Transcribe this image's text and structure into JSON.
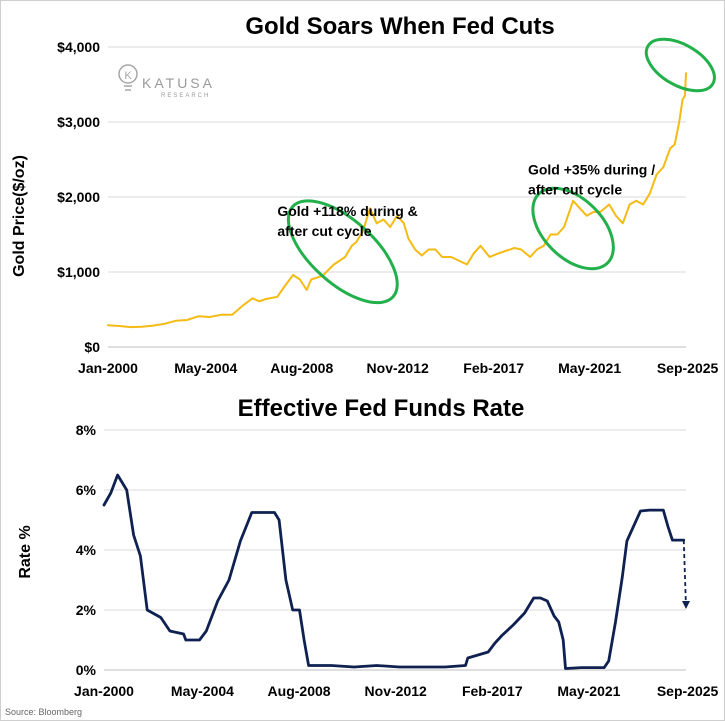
{
  "source": "Source: Bloomberg",
  "logo": {
    "name": "KATUSA",
    "sub": "RESEARCH"
  },
  "colors": {
    "gold": "#f4bb15",
    "rate": "#0f2150",
    "highlight": "#22b04b",
    "grid": "#d9d9d9"
  },
  "chart_data": [
    {
      "type": "line",
      "title": "Gold Soars When Fed Cuts",
      "xlabel": "",
      "ylabel": "Gold Price($/oz)",
      "x_range": [
        2000.0,
        2025.6
      ],
      "ylim": [
        0,
        4000
      ],
      "y_ticks": [
        0,
        1000,
        2000,
        3000,
        4000
      ],
      "y_tick_labels": [
        "$0",
        "$1,000",
        "$2,000",
        "$3,000",
        "$4,000"
      ],
      "x_ticks": [
        2000.0,
        2004.33,
        2008.58,
        2012.83,
        2017.08,
        2021.33,
        2025.67
      ],
      "x_tick_labels": [
        "Jan-2000",
        "May-2004",
        "Aug-2008",
        "Nov-2012",
        "Feb-2017",
        "May-2021",
        "Sep-2025"
      ],
      "grid": true,
      "series": [
        {
          "name": "Gold Price",
          "x": [
            2000.0,
            2000.5,
            2001.0,
            2001.5,
            2002.0,
            2002.5,
            2003.0,
            2003.5,
            2004.0,
            2004.5,
            2005.0,
            2005.5,
            2006.0,
            2006.4,
            2006.7,
            2007.0,
            2007.5,
            2007.8,
            2008.2,
            2008.5,
            2008.8,
            2009.0,
            2009.5,
            2010.0,
            2010.5,
            2010.8,
            2011.0,
            2011.3,
            2011.6,
            2011.9,
            2012.2,
            2012.5,
            2012.8,
            2013.1,
            2013.3,
            2013.6,
            2013.9,
            2014.2,
            2014.5,
            2014.8,
            2015.2,
            2015.9,
            2016.2,
            2016.5,
            2016.9,
            2017.3,
            2017.6,
            2018.0,
            2018.3,
            2018.7,
            2019.0,
            2019.3,
            2019.6,
            2019.9,
            2020.2,
            2020.6,
            2020.9,
            2021.2,
            2021.5,
            2021.8,
            2022.2,
            2022.5,
            2022.8,
            2023.1,
            2023.4,
            2023.7,
            2024.0,
            2024.3,
            2024.6,
            2024.9,
            2025.1,
            2025.3,
            2025.45,
            2025.55,
            2025.6
          ],
          "values": [
            290,
            280,
            265,
            270,
            285,
            310,
            350,
            360,
            410,
            400,
            430,
            430,
            560,
            650,
            610,
            640,
            670,
            800,
            960,
            900,
            760,
            900,
            950,
            1100,
            1200,
            1350,
            1400,
            1550,
            1850,
            1650,
            1700,
            1600,
            1750,
            1650,
            1450,
            1300,
            1220,
            1300,
            1300,
            1200,
            1200,
            1100,
            1250,
            1350,
            1200,
            1250,
            1280,
            1320,
            1300,
            1200,
            1300,
            1350,
            1500,
            1500,
            1600,
            1950,
            1850,
            1750,
            1800,
            1800,
            1900,
            1750,
            1650,
            1900,
            1950,
            1900,
            2050,
            2300,
            2400,
            2650,
            2700,
            3000,
            3300,
            3350,
            3650
          ]
        }
      ],
      "annotations": [
        {
          "lines": [
            "Gold +118% during &",
            "after cut cycle"
          ],
          "x": 2007.5,
          "y": 1750
        },
        {
          "lines": [
            "Gold +35% during /",
            "after cut cycle"
          ],
          "x": 2018.6,
          "y": 2300
        }
      ],
      "highlights": [
        {
          "cx": 2010.4,
          "cy": 1270,
          "rx_years": 1.4,
          "ry_value": 900,
          "angle": -48
        },
        {
          "cx": 2020.6,
          "cy": 1580,
          "rx_years": 1.3,
          "ry_value": 650,
          "angle": -45
        },
        {
          "cx": 2025.35,
          "cy": 3760,
          "rx_years": 0.9,
          "ry_value": 500,
          "angle": -60
        }
      ]
    },
    {
      "type": "line",
      "title": "Effective Fed Funds Rate",
      "xlabel": "",
      "ylabel": "Rate %",
      "x_range": [
        2000.0,
        2025.6
      ],
      "ylim": [
        0,
        8
      ],
      "y_ticks": [
        0,
        2,
        4,
        6,
        8
      ],
      "y_tick_labels": [
        "0%",
        "2%",
        "4%",
        "6%",
        "8%"
      ],
      "x_ticks": [
        2000.0,
        2004.33,
        2008.58,
        2012.83,
        2017.08,
        2021.33,
        2025.67
      ],
      "x_tick_labels": [
        "Jan-2000",
        "May-2004",
        "Aug-2008",
        "Nov-2012",
        "Feb-2017",
        "May-2021",
        "Sep-2025"
      ],
      "grid": true,
      "series": [
        {
          "name": "Effective Fed Funds Rate",
          "x": [
            2000.0,
            2000.3,
            2000.6,
            2001.0,
            2001.3,
            2001.6,
            2001.9,
            2002.5,
            2002.9,
            2003.5,
            2003.6,
            2004.2,
            2004.5,
            2005.0,
            2005.5,
            2006.0,
            2006.5,
            2007.0,
            2007.5,
            2007.7,
            2008.0,
            2008.3,
            2008.6,
            2008.8,
            2009.0,
            2010.0,
            2011.0,
            2012.0,
            2013.0,
            2014.0,
            2015.0,
            2015.9,
            2016.0,
            2016.9,
            2017.2,
            2017.5,
            2018.0,
            2018.5,
            2018.9,
            2019.2,
            2019.5,
            2019.8,
            2020.0,
            2020.2,
            2020.3,
            2021.0,
            2022.0,
            2022.2,
            2022.5,
            2022.8,
            2023.0,
            2023.3,
            2023.6,
            2024.0,
            2024.6,
            2024.8,
            2025.0,
            2025.5
          ],
          "values": [
            5.5,
            5.9,
            6.5,
            6.0,
            4.5,
            3.8,
            2.0,
            1.75,
            1.3,
            1.2,
            1.0,
            1.0,
            1.3,
            2.3,
            3.0,
            4.3,
            5.25,
            5.25,
            5.25,
            5.0,
            3.0,
            2.0,
            2.0,
            1.0,
            0.15,
            0.15,
            0.1,
            0.15,
            0.1,
            0.1,
            0.1,
            0.15,
            0.4,
            0.6,
            0.9,
            1.15,
            1.5,
            1.9,
            2.4,
            2.4,
            2.3,
            1.8,
            1.6,
            1.0,
            0.05,
            0.08,
            0.08,
            0.3,
            1.6,
            3.1,
            4.3,
            4.8,
            5.3,
            5.33,
            5.33,
            4.8,
            4.33,
            4.33
          ]
        }
      ],
      "projection": {
        "from": [
          2025.5,
          4.33
        ],
        "to": [
          2025.6,
          2.1
        ]
      }
    }
  ]
}
